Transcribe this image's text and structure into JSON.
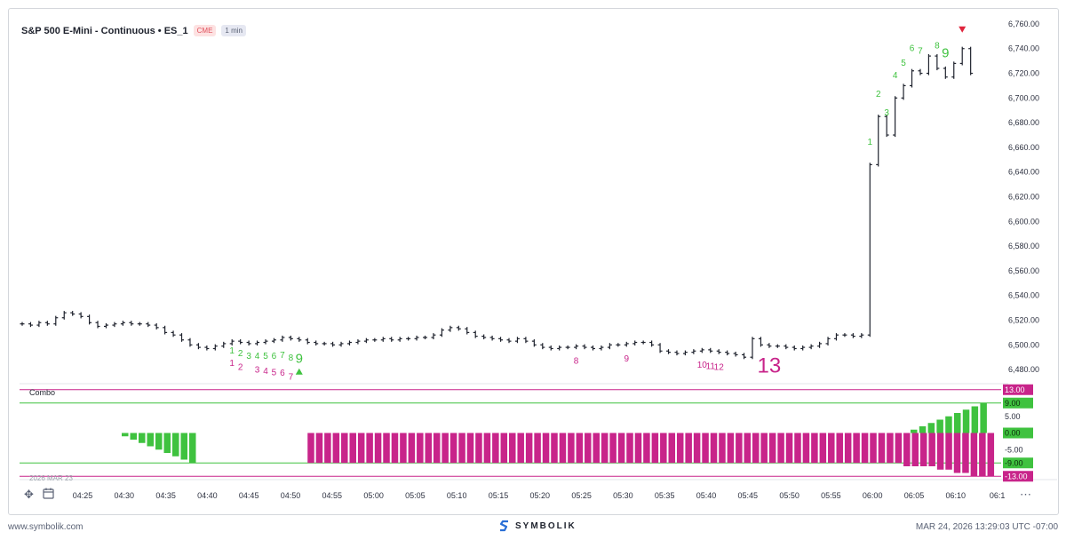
{
  "header": {
    "title": "S&P 500 E-Mini - Continuous • ES_1",
    "exchange": "CME",
    "interval": "1 min"
  },
  "indicator": {
    "name": "Combo"
  },
  "date_stamp": "2026 MAR 23",
  "footer": {
    "site": "www.symbolik.com",
    "brand": "SYMBOLIK",
    "timestamp": "MAR 24, 2026 13:29:03 UTC -07:00"
  },
  "colors": {
    "up_count": "#3fc23f",
    "down_count": "#c8248a",
    "combo_magenta": "#c8248a",
    "combo_green": "#3fc23f",
    "candle": "#1e222d"
  },
  "icons": [
    "crosshair-move-icon",
    "calendar-icon",
    "more-icon",
    "symbolik-logo-icon"
  ],
  "chart_data": {
    "type": "ohlc-bar",
    "price_axis": {
      "ticks": [
        "6,760.00",
        "6,740.00",
        "6,720.00",
        "6,700.00",
        "6,680.00",
        "6,660.00",
        "6,640.00",
        "6,620.00",
        "6,600.00",
        "6,580.00",
        "6,560.00",
        "6,540.00",
        "6,520.00",
        "6,500.00",
        "6,480.00"
      ],
      "ylim": [
        6470,
        6765
      ]
    },
    "time_axis": {
      "ticks": [
        "04:25",
        "04:30",
        "04:35",
        "04:40",
        "04:45",
        "04:50",
        "04:55",
        "05:00",
        "05:05",
        "05:10",
        "05:15",
        "05:20",
        "05:25",
        "05:30",
        "05:35",
        "05:40",
        "05:45",
        "05:50",
        "05:55",
        "06:00",
        "06:05",
        "06:10",
        "06:1"
      ]
    },
    "combo_axis": {
      "ticks": [
        "13.00",
        "9.00",
        "5.00",
        "0.00",
        "-5.00",
        "-9.00",
        "-13.00"
      ],
      "ylim": [
        -14,
        14
      ],
      "levels": [
        13,
        9,
        -9,
        -13
      ]
    },
    "prices": [
      6517,
      6516,
      6518,
      6517,
      6522,
      6526,
      6525,
      6523,
      6518,
      6515,
      6516,
      6517,
      6518,
      6517,
      6517,
      6516,
      6514,
      6510,
      6508,
      6504,
      6500,
      6498,
      6497,
      6499,
      6501,
      6503,
      6502,
      6501,
      6502,
      6503,
      6504,
      6506,
      6505,
      6504,
      6502,
      6501,
      6501,
      6500,
      6501,
      6502,
      6503,
      6504,
      6504,
      6505,
      6504,
      6505,
      6505,
      6506,
      6506,
      6508,
      6512,
      6514,
      6513,
      6510,
      6507,
      6506,
      6505,
      6504,
      6503,
      6505,
      6503,
      6500,
      6498,
      6497,
      6498,
      6498,
      6499,
      6498,
      6497,
      6498,
      6500,
      6500,
      6501,
      6502,
      6502,
      6500,
      6495,
      6494,
      6493,
      6494,
      6495,
      6496,
      6495,
      6494,
      6493,
      6492,
      6490,
      6505,
      6500,
      6499,
      6499,
      6498,
      6497,
      6498,
      6499,
      6501,
      6505,
      6508,
      6508,
      6507,
      6508,
      6646,
      6685,
      6670,
      6700,
      6710,
      6722,
      6720,
      6734,
      6724,
      6717,
      6728,
      6740,
      6720
    ],
    "setup_counts": [
      {
        "bar": 25,
        "label": "1"
      },
      {
        "bar": 26,
        "label": "2"
      },
      {
        "bar": 27,
        "label": "3"
      },
      {
        "bar": 28,
        "label": "4"
      },
      {
        "bar": 29,
        "label": "5"
      },
      {
        "bar": 30,
        "label": "6"
      },
      {
        "bar": 31,
        "label": "7"
      },
      {
        "bar": 32,
        "label": "8"
      },
      {
        "bar": 33,
        "label": "9"
      },
      {
        "bar": 101,
        "label": "1"
      },
      {
        "bar": 102,
        "label": "2"
      },
      {
        "bar": 103,
        "label": "3"
      },
      {
        "bar": 104,
        "label": "4"
      },
      {
        "bar": 105,
        "label": "5"
      },
      {
        "bar": 106,
        "label": "6"
      },
      {
        "bar": 107,
        "label": "7"
      },
      {
        "bar": 109,
        "label": "8"
      },
      {
        "bar": 110,
        "label": "9"
      }
    ],
    "countdown_counts": [
      {
        "bar": 25,
        "label": "1"
      },
      {
        "bar": 26,
        "label": "2"
      },
      {
        "bar": 28,
        "label": "3"
      },
      {
        "bar": 29,
        "label": "4"
      },
      {
        "bar": 30,
        "label": "5"
      },
      {
        "bar": 31,
        "label": "6"
      },
      {
        "bar": 32,
        "label": "7"
      },
      {
        "bar": 66,
        "label": "8"
      },
      {
        "bar": 72,
        "label": "9"
      },
      {
        "bar": 81,
        "label": "10"
      },
      {
        "bar": 82,
        "label": "11"
      },
      {
        "bar": 83,
        "label": "12"
      },
      {
        "bar": 89,
        "label": "13"
      }
    ],
    "combo_start_bar": 25,
    "combo_values": [
      -1,
      -2,
      -3,
      -4,
      -5,
      -6,
      -7,
      -8,
      -9,
      -9,
      -9,
      -9,
      -9,
      -9,
      -9,
      -9,
      -9,
      -9,
      -9,
      -9,
      -9,
      -9,
      -9,
      -9,
      -9,
      -9,
      -9,
      -9,
      -9,
      -9,
      -9,
      -9,
      -9,
      -9,
      -9,
      -9,
      -9,
      -9,
      -9,
      -9,
      -9,
      -9,
      -9,
      -9,
      -9,
      -9,
      -9,
      -9,
      -9,
      -9,
      -9,
      -9,
      -9,
      -9,
      -9,
      -9,
      -9,
      -9,
      -9,
      -9,
      -9,
      -9,
      -9,
      -9,
      -9,
      -9,
      -9,
      -9,
      -9,
      -9,
      -9,
      -9,
      -9,
      -9,
      -9,
      -9,
      -9,
      -9,
      -9,
      -9,
      -10,
      -10,
      -10,
      -10,
      -11,
      -11,
      -12,
      -12,
      -13,
      -13,
      -13
    ],
    "combo_values_up": [
      1,
      2,
      3,
      4,
      5,
      6,
      7,
      8,
      9
    ],
    "combo_up_start_bar": 101
  }
}
